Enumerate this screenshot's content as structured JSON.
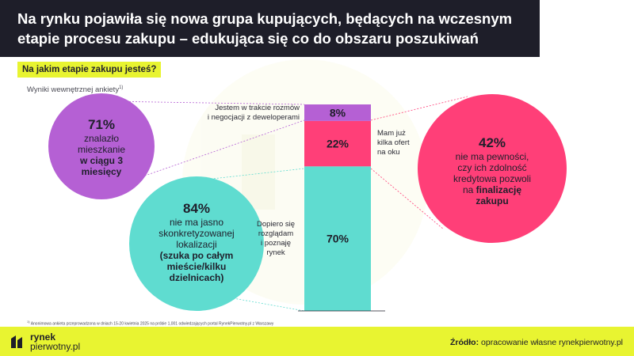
{
  "title": "Na rynku pojawiła się nowa grupa kupujących, będących na wczesnym etapie procesu zakupu – edukująca się co do obszaru poszukiwań",
  "question": "Na jakim etapie zakupu jesteś?",
  "subnote": "Wyniki wewnętrznej ankiety",
  "subnote_sup": "1)",
  "chart_data": {
    "type": "bar",
    "stacked": true,
    "categories": [
      "Dopiero się rozglądam i poznaję rynek",
      "Mam już kilka ofert na oku",
      "Jestem w trakcie rozmów i negocjacji z deweloperami"
    ],
    "values": [
      70,
      22,
      8
    ],
    "value_labels": [
      "70%",
      "22%",
      "8%"
    ],
    "colors": [
      "#5fdcd0",
      "#ff3f78",
      "#b560d4"
    ],
    "ylim": [
      0,
      100
    ]
  },
  "bar_side_labels": {
    "top": [
      "Jestem w trakcie rozmów",
      "i negocjacji z deweloperami"
    ],
    "middle": [
      "Mam już",
      "kilka ofert",
      "na oku"
    ],
    "bottom": [
      "Dopiero się",
      "rozglądam",
      "i poznaję",
      "rynek"
    ]
  },
  "circles": {
    "purple": {
      "pct": "71%",
      "lines": [
        "znalazło",
        "mieszkanie"
      ],
      "bold_lines": [
        "w ciągu 3",
        "miesięcy"
      ],
      "color": "#b560d4"
    },
    "teal": {
      "pct": "84%",
      "lines": [
        "nie ma jasno",
        "skonkretyzowanej",
        "lokalizacji"
      ],
      "bold_lines": [
        "(szuka po całym",
        "mieście/kilku",
        "dzielnicach)"
      ],
      "color": "#5fdcd0"
    },
    "pink": {
      "pct": "42%",
      "lines": [
        "nie ma pewności,",
        "czy ich zdolność",
        "kredytowa pozwoli"
      ],
      "mixed_line": {
        "normal": "na ",
        "bold": "finalizację"
      },
      "bold_lines": [
        "zakupu"
      ],
      "color": "#ff3f78"
    }
  },
  "footnote_sup": "1)",
  "footnote": "Anonimowa ankieta przeprowadzona w dniach 15-20 kwietnia 2025 na próbie 1,001 odwiedzających portal RynekPierwotny.pl z Warszawy",
  "logo": {
    "line1": "rynek",
    "line2": "pierwotny.pl"
  },
  "source": {
    "label": "Źródło:",
    "text": "opracowanie własne rynekpierwotny.pl"
  },
  "colors": {
    "dark": "#1e1e29",
    "accent": "#e8f431"
  }
}
